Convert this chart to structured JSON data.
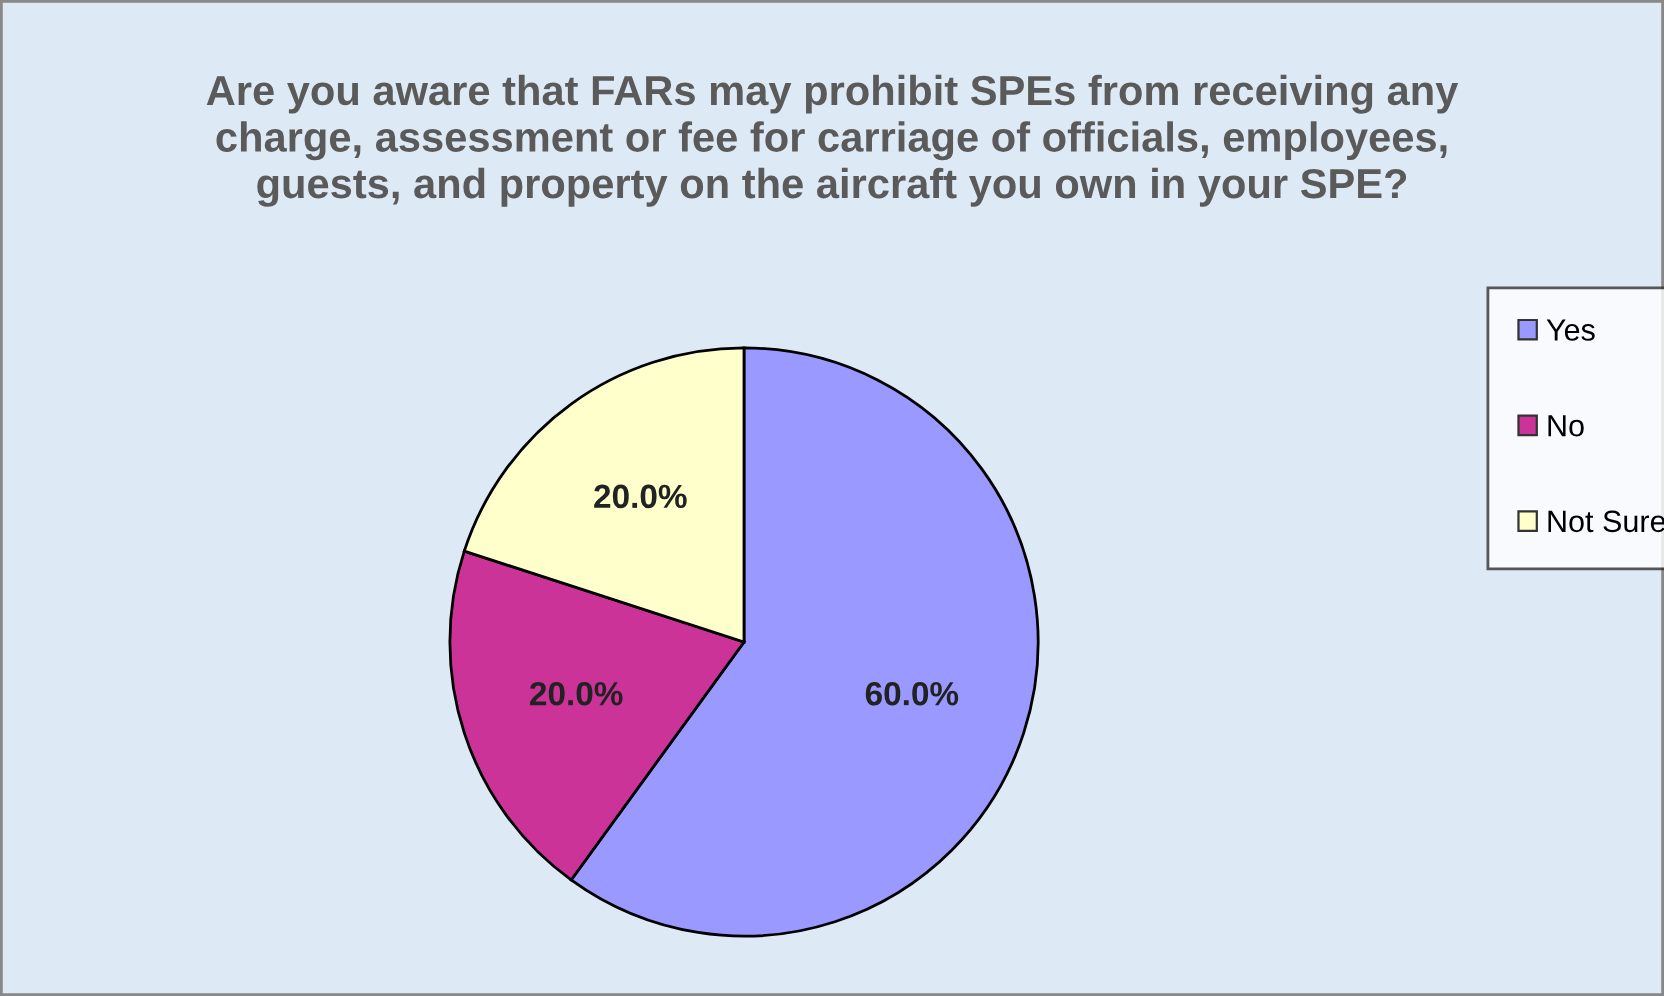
{
  "chart_data": {
    "type": "pie",
    "title": "Are you aware that FARs may prohibit SPEs from receiving any charge, assessment or fee for carriage of officials, employees, guests, and property on the aircraft you own in your SPE?",
    "categories": [
      "Yes",
      "No",
      "Not Sure"
    ],
    "values": [
      60,
      20,
      20
    ],
    "colors": [
      "#9999ff",
      "#cc3399",
      "#ffffcc"
    ],
    "value_labels": [
      "60.0%",
      "20.0%",
      "20.0%"
    ],
    "legend": "right"
  }
}
